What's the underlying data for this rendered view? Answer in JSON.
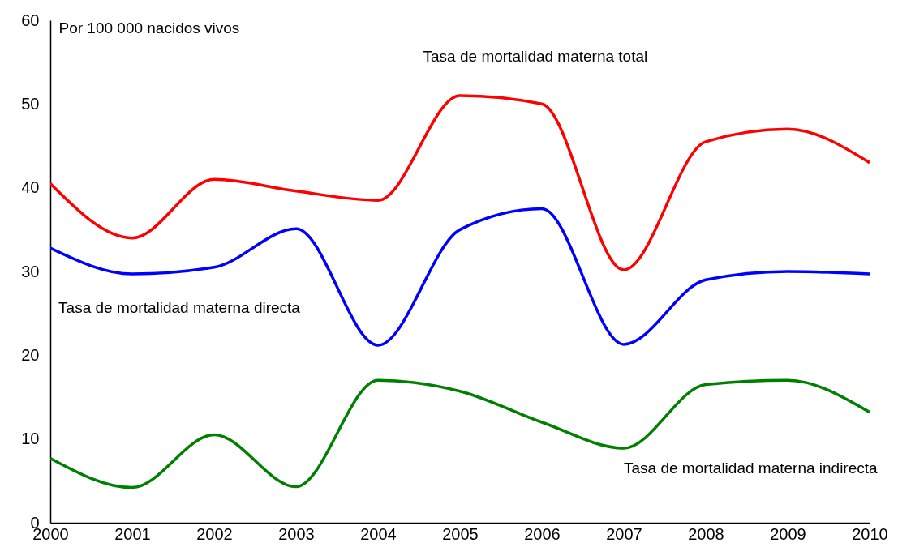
{
  "chart_data": {
    "type": "line",
    "ylabel": "Por 100 000 nacidos vivos",
    "x": [
      2000,
      2001,
      2002,
      2003,
      2004,
      2005,
      2006,
      2007,
      2008,
      2009,
      2010
    ],
    "xlim": [
      2000,
      2010
    ],
    "xticks": [
      2000,
      2001,
      2002,
      2003,
      2004,
      2005,
      2006,
      2007,
      2008,
      2009,
      2010
    ],
    "ylim": [
      0,
      60
    ],
    "yticks": [
      0,
      10,
      20,
      30,
      40,
      50,
      60
    ],
    "grid": false,
    "legend": false,
    "marker": "none",
    "line_style": "solid",
    "series": [
      {
        "name": "Tasa de mortalidad materna total",
        "color": "#ff0000",
        "values": [
          40.5,
          34,
          41,
          39.6,
          38.5,
          51,
          50,
          30.2,
          45.5,
          47,
          43
        ]
      },
      {
        "name": "Tasa de mortalidad materna directa",
        "color": "#0000ff",
        "values": [
          32.8,
          29.7,
          30.5,
          35.1,
          21.2,
          35,
          37.5,
          21.3,
          29,
          30,
          29.7
        ]
      },
      {
        "name": "Tasa de mortalidad materna indirecta",
        "color": "#008000",
        "values": [
          7.7,
          4.2,
          10.5,
          4.3,
          17,
          15.7,
          12,
          8.9,
          16.5,
          17,
          13.2
        ]
      }
    ]
  }
}
